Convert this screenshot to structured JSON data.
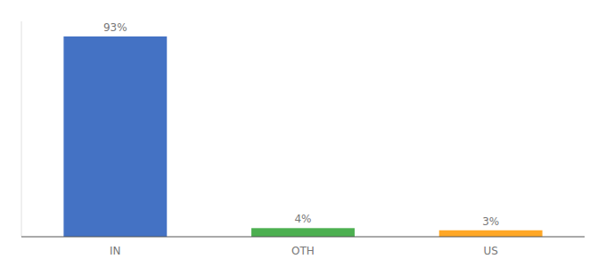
{
  "chart_data": {
    "type": "bar",
    "categories": [
      "IN",
      "OTH",
      "US"
    ],
    "values": [
      93,
      4,
      3
    ],
    "colors": [
      "#4472C4",
      "#4CAF50",
      "#FFA726"
    ],
    "value_labels": [
      "93%",
      "4%",
      "3%"
    ],
    "data_labels": true,
    "ylim": [
      0,
      100
    ],
    "grid": false,
    "tick_labels": "x"
  }
}
